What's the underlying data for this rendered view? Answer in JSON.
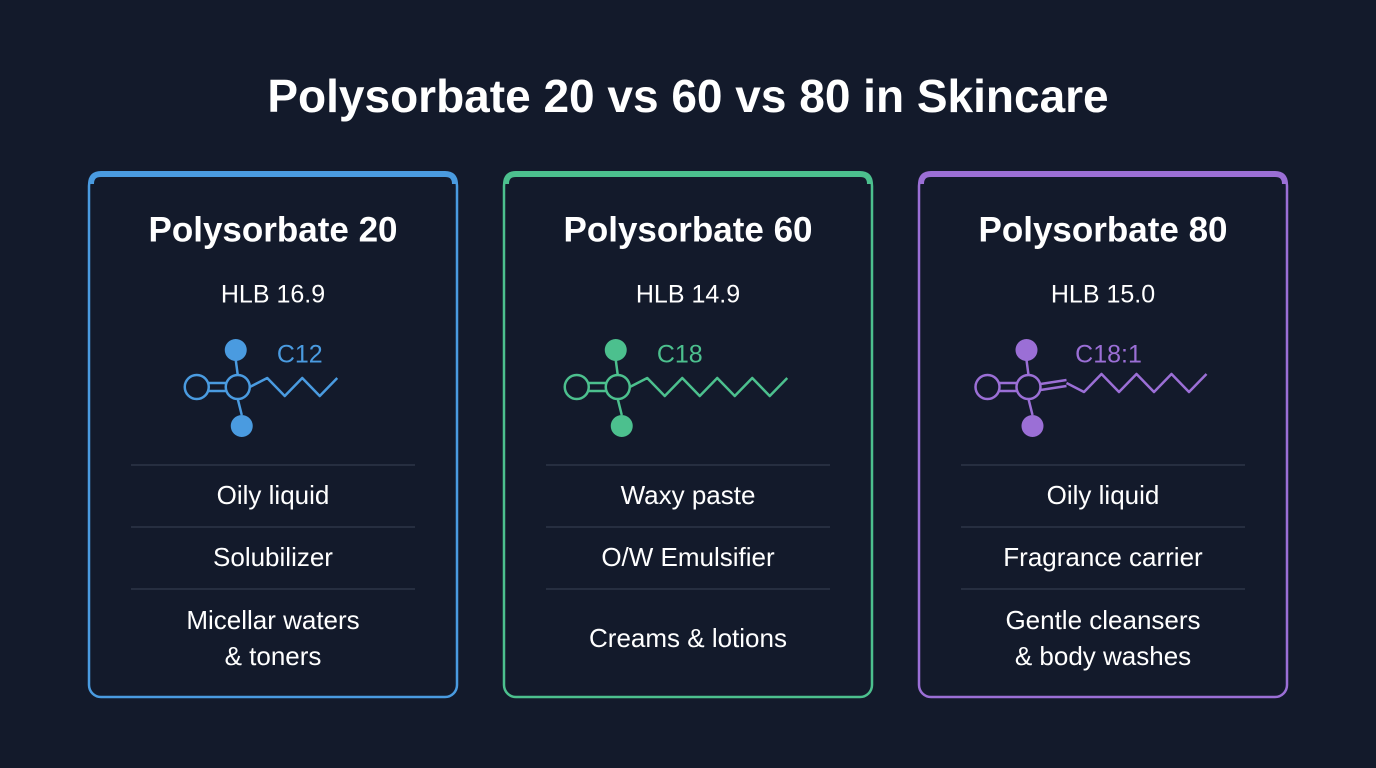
{
  "title": "Polysorbate 20 vs 60 vs 80 in Skincare",
  "cards": [
    {
      "name": "Polysorbate 20",
      "hlb": "HLB 16.9",
      "chain": "C12",
      "color": "#4a9be0",
      "rows": [
        [
          "Oily liquid"
        ],
        [
          "Solubilizer"
        ],
        [
          "Micellar waters",
          "& toners"
        ]
      ]
    },
    {
      "name": "Polysorbate 60",
      "hlb": "HLB 14.9",
      "chain": "C18",
      "color": "#4cc08e",
      "rows": [
        [
          "Waxy paste"
        ],
        [
          "O/W Emulsifier"
        ],
        [
          "Creams & lotions"
        ]
      ]
    },
    {
      "name": "Polysorbate 80",
      "hlb": "HLB 15.0",
      "chain": "C18:1",
      "color": "#9b6fd6",
      "rows": [
        [
          "Oily liquid"
        ],
        [
          "Fragrance carrier"
        ],
        [
          "Gentle cleansers",
          "& body washes"
        ]
      ]
    }
  ]
}
